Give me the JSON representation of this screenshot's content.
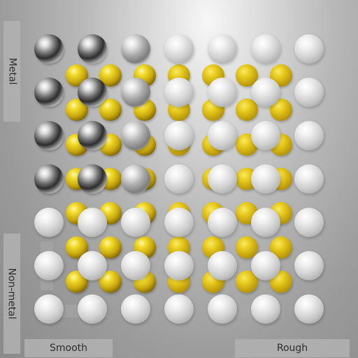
{
  "labels": {
    "metal": "Metal",
    "non_metal": "Non-metal",
    "smooth": "Smooth",
    "rough": "Rough"
  },
  "colors": {
    "gold": "#e2c21a",
    "silver": "#d0d0d0",
    "background": "#a6a6a6"
  }
}
